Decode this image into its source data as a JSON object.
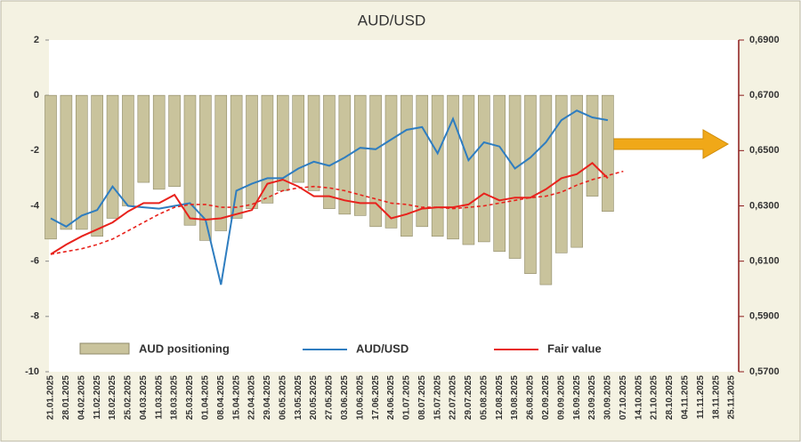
{
  "chart_data": {
    "type": "combo",
    "title": "AUD/USD",
    "categories": [
      "21.01.2025",
      "28.01.2025",
      "04.02.2025",
      "11.02.2025",
      "18.02.2025",
      "25.02.2025",
      "04.03.2025",
      "11.03.2025",
      "18.03.2025",
      "25.03.2025",
      "01.04.2025",
      "08.04.2025",
      "15.04.2025",
      "22.04.2025",
      "29.04.2025",
      "06.05.2025",
      "13.05.2025",
      "20.05.2025",
      "27.05.2025",
      "03.06.2025",
      "10.06.2025",
      "17.06.2025",
      "24.06.2025",
      "01.07.2025",
      "08.07.2025",
      "15.07.2025",
      "22.07.2025",
      "29.07.2025",
      "05.08.2025",
      "12.08.2025",
      "19.08.2025",
      "26.08.2025",
      "02.09.2025",
      "09.09.2025",
      "16.09.2025",
      "23.09.2025",
      "30.09.2025",
      "07.10.2025",
      "14.10.2025",
      "21.10.2025",
      "28.10.2025",
      "04.11.2025",
      "11.11.2025",
      "18.11.2025",
      "25.11.2025"
    ],
    "series": [
      {
        "name": "AUD positioning",
        "type": "bar",
        "axis": "y",
        "color": "#c9c39c",
        "values": [
          -5.2,
          -4.85,
          -4.85,
          -5.1,
          -4.45,
          -4.0,
          -3.15,
          -3.4,
          -3.3,
          -4.7,
          -5.25,
          -4.9,
          -4.45,
          -4.1,
          -3.9,
          -3.45,
          -3.15,
          -3.45,
          -4.1,
          -4.3,
          -4.35,
          -4.75,
          -4.8,
          -5.1,
          -4.75,
          -5.1,
          -5.2,
          -5.4,
          -5.3,
          -5.65,
          -5.9,
          -6.45,
          -6.85,
          -5.7,
          -5.5,
          -3.65,
          -4.2,
          null,
          null,
          null,
          null,
          null,
          null,
          null,
          null
        ]
      },
      {
        "name": "AUD/USD",
        "type": "line",
        "axis": "y2",
        "color": "#2e7dc0",
        "values": [
          0.6255,
          0.6225,
          0.6265,
          0.6285,
          0.637,
          0.63,
          0.6295,
          0.629,
          0.63,
          0.631,
          0.625,
          0.6015,
          0.6355,
          0.638,
          0.64,
          0.64,
          0.6435,
          0.646,
          0.6445,
          0.6475,
          0.651,
          0.6505,
          0.654,
          0.6575,
          0.6585,
          0.649,
          0.6615,
          0.6465,
          0.653,
          0.6515,
          0.6435,
          0.6475,
          0.653,
          0.661,
          0.6645,
          0.662,
          0.661,
          null,
          null,
          null,
          null,
          null,
          null,
          null,
          null
        ]
      },
      {
        "name": "Fair value",
        "type": "line",
        "axis": "y2",
        "color": "#e8221c",
        "values": [
          0.6125,
          0.616,
          0.619,
          0.6215,
          0.624,
          0.628,
          0.631,
          0.631,
          0.634,
          0.6255,
          0.625,
          0.6255,
          0.627,
          0.6285,
          0.638,
          0.6395,
          0.637,
          0.6335,
          0.6335,
          0.632,
          0.631,
          0.631,
          0.6255,
          0.627,
          0.629,
          0.6295,
          0.6295,
          0.6305,
          0.6345,
          0.632,
          0.633,
          0.633,
          0.636,
          0.64,
          0.6415,
          0.6455,
          0.64,
          null,
          null,
          null,
          null,
          null,
          null,
          null,
          null
        ]
      },
      {
        "type": "line",
        "axis": "y2",
        "color": "#e8221c",
        "dashed": true,
        "values": [
          0.6125,
          0.6135,
          0.6145,
          0.616,
          0.618,
          0.621,
          0.624,
          0.627,
          0.6295,
          0.6305,
          0.6305,
          0.6295,
          0.6295,
          0.6305,
          0.633,
          0.6355,
          0.6365,
          0.637,
          0.6365,
          0.6355,
          0.634,
          0.6325,
          0.631,
          0.6305,
          0.6295,
          0.6295,
          0.629,
          0.6295,
          0.63,
          0.631,
          0.632,
          0.633,
          0.6335,
          0.635,
          0.6375,
          0.6395,
          0.641,
          0.6425,
          null,
          null,
          null,
          null,
          null,
          null,
          null
        ]
      }
    ],
    "ylim": [
      -10,
      2
    ],
    "yticks": [
      -10,
      -8,
      -6,
      -4,
      -2,
      0,
      2
    ],
    "y2lim": [
      0.57,
      0.69
    ],
    "y2ticks": [
      {
        "value": 0.57,
        "label": "0,5700"
      },
      {
        "value": 0.59,
        "label": "0,5900"
      },
      {
        "value": 0.61,
        "label": "0,6100"
      },
      {
        "value": 0.63,
        "label": "0,6300"
      },
      {
        "value": 0.65,
        "label": "0,6500"
      },
      {
        "value": 0.67,
        "label": "0,6700"
      },
      {
        "value": 0.69,
        "label": "0,6900"
      }
    ]
  }
}
